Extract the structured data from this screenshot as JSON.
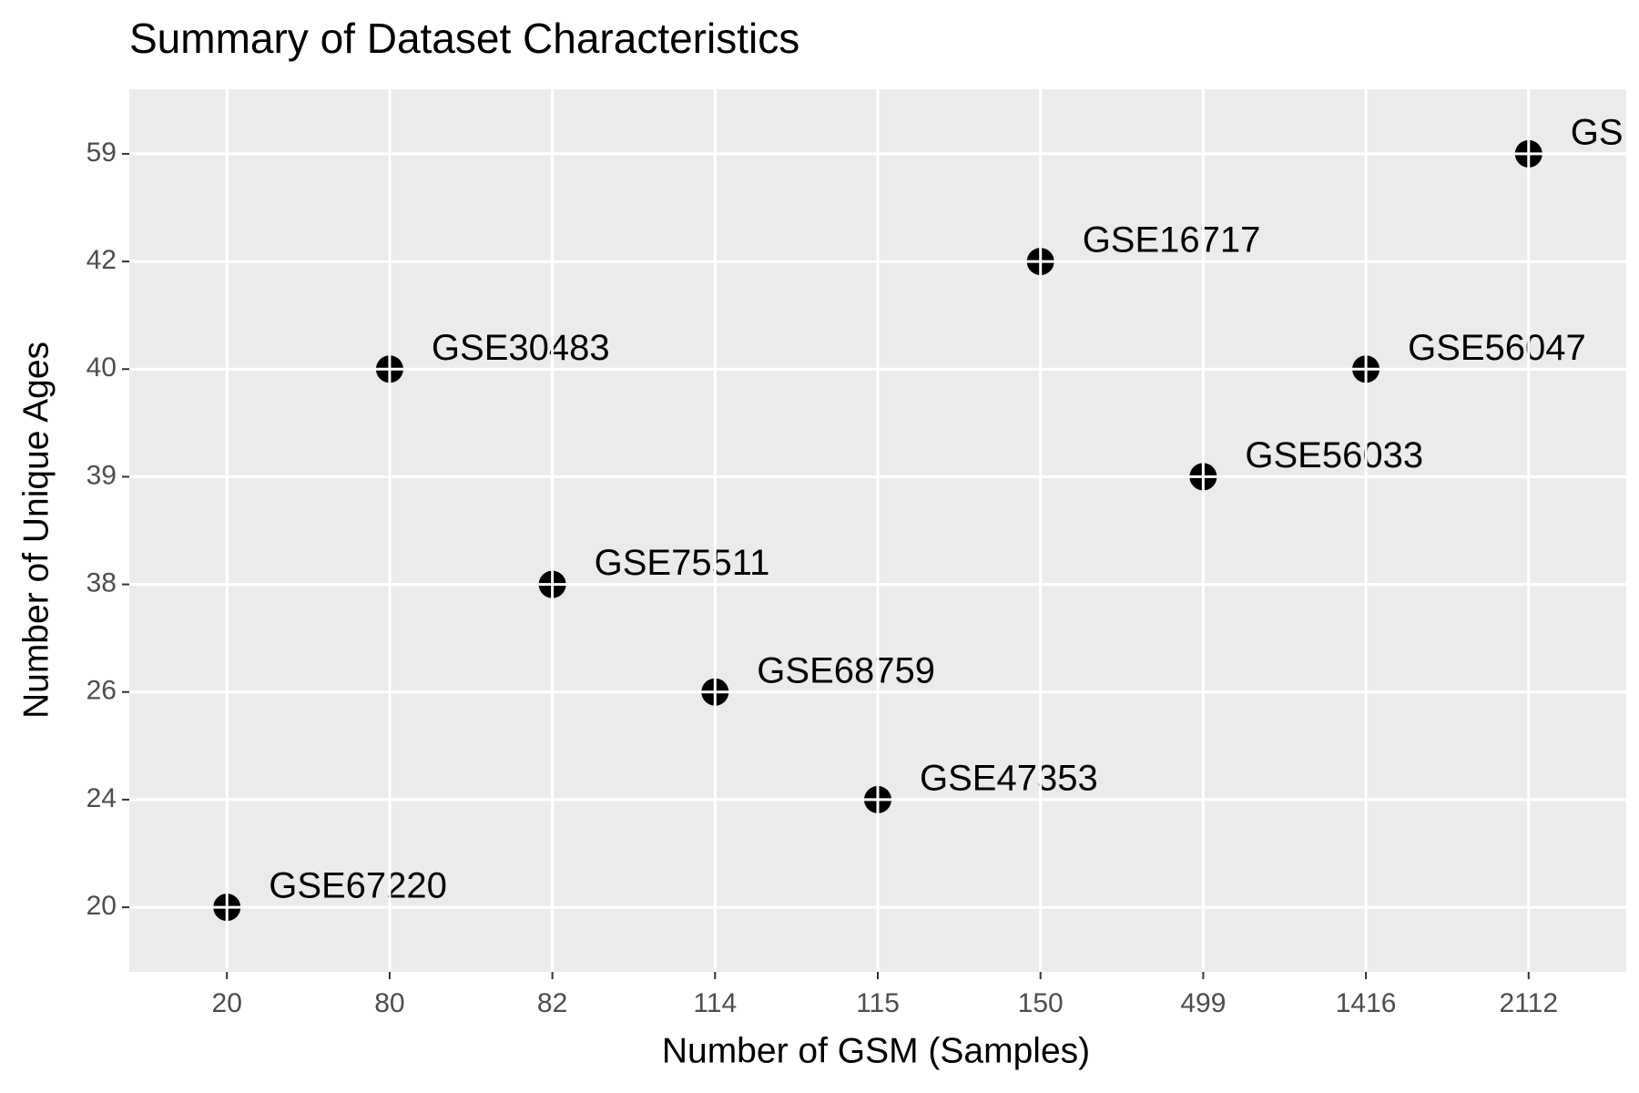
{
  "chart_data": {
    "type": "scatter",
    "title": "Summary of Dataset Characteristics",
    "x_label": "Number of GSM (Samples)",
    "y_label": "Number of Unique Ages",
    "xcategories": [
      20,
      80,
      82,
      114,
      115,
      150,
      499,
      1416,
      2112
    ],
    "ycategories": [
      20,
      24,
      26,
      38,
      39,
      40,
      42,
      59
    ],
    "x": [
      20,
      80,
      82,
      114,
      115,
      150,
      499,
      1416,
      2112
    ],
    "values": [
      20,
      40,
      38,
      26,
      24,
      42,
      39,
      40,
      59
    ],
    "labels": [
      "GSE67220",
      "GSE30483",
      "GSE75511",
      "GSE68759",
      "GSE47353",
      "GSE16717",
      "GSE56033",
      "GSE56047",
      "GS"
    ],
    "color": "#000000",
    "panel_color": "#ebebeb",
    "grid": true
  }
}
